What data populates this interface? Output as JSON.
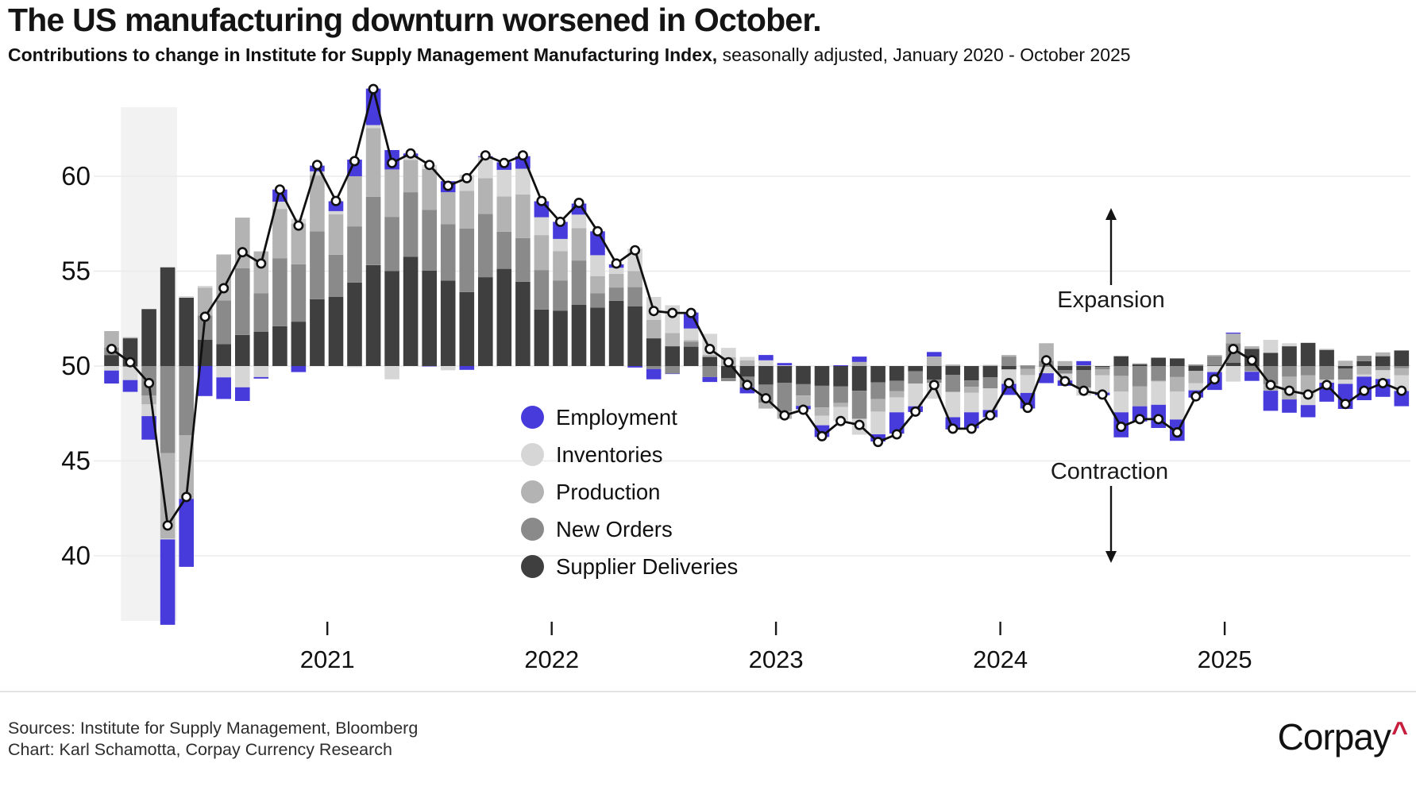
{
  "title": "The US manufacturing downturn worsened in October.",
  "subtitle_bold": "Contributions to change in Institute for Supply Management Manufacturing Index,",
  "subtitle_regular": " seasonally adjusted, January 2020 - October 2025",
  "legend": {
    "items": [
      {
        "label": "Employment",
        "color": "#473BDB"
      },
      {
        "label": "Inventories",
        "color": "#d6d6d6"
      },
      {
        "label": "Production",
        "color": "#b3b3b3"
      },
      {
        "label": "New Orders",
        "color": "#8a8a8a"
      },
      {
        "label": "Supplier Deliveries",
        "color": "#3f3f3f"
      }
    ]
  },
  "annotations": {
    "expansion": "Expansion",
    "contraction": "Contraction"
  },
  "footer": {
    "sources_line": "Sources: Institute for Supply Management, Bloomberg",
    "chart_line": "Chart: Karl Schamotta, Corpay Currency Research"
  },
  "logo": {
    "text": "Corpay",
    "caret": "^",
    "caret_color": "#C81E3E"
  },
  "chart_data": {
    "type": "bar",
    "subtype": "stacked-contribution-bars-with-line",
    "baseline": 50,
    "ylim": [
      36,
      66
    ],
    "grid": true,
    "y_ticks": [
      40,
      45,
      50,
      55,
      60
    ],
    "x_ticks": [
      {
        "label": "2021",
        "month": "Jan 2021"
      },
      {
        "label": "2022",
        "month": "Jan 2022"
      },
      {
        "label": "2023",
        "month": "Jan 2023"
      },
      {
        "label": "2024",
        "month": "Jan 2024"
      },
      {
        "label": "2025",
        "month": "Jan 2025"
      }
    ],
    "recession_band": {
      "from": "Feb 2020",
      "to": "Apr 2020"
    },
    "months": [
      "Jan 2020",
      "Feb 2020",
      "Mar 2020",
      "Apr 2020",
      "May 2020",
      "Jun 2020",
      "Jul 2020",
      "Aug 2020",
      "Sep 2020",
      "Oct 2020",
      "Nov 2020",
      "Dec 2020",
      "Jan 2021",
      "Feb 2021",
      "Mar 2021",
      "Apr 2021",
      "May 2021",
      "Jun 2021",
      "Jul 2021",
      "Aug 2021",
      "Sep 2021",
      "Oct 2021",
      "Nov 2021",
      "Dec 2021",
      "Jan 2022",
      "Feb 2022",
      "Mar 2022",
      "Apr 2022",
      "May 2022",
      "Jun 2022",
      "Jul 2022",
      "Aug 2022",
      "Sep 2022",
      "Oct 2022",
      "Nov 2022",
      "Dec 2022",
      "Jan 2023",
      "Feb 2023",
      "Mar 2023",
      "Apr 2023",
      "May 2023",
      "Jun 2023",
      "Jul 2023",
      "Aug 2023",
      "Sep 2023",
      "Oct 2023",
      "Nov 2023",
      "Dec 2023",
      "Jan 2024",
      "Feb 2024",
      "Mar 2024",
      "Apr 2024",
      "May 2024",
      "Jun 2024",
      "Jul 2024",
      "Aug 2024",
      "Sep 2024",
      "Oct 2024",
      "Nov 2024",
      "Dec 2024",
      "Jan 2025",
      "Feb 2025",
      "Mar 2025",
      "Apr 2025",
      "May 2025",
      "Jun 2025",
      "Jul 2025",
      "Aug 2025",
      "Sep 2025",
      "Oct 2025"
    ],
    "series": [
      {
        "name": "Supplier Deliveries",
        "color": "#3f3f3f",
        "values": [
          0.58,
          1.46,
          3.0,
          5.2,
          3.6,
          1.38,
          1.16,
          1.64,
          1.8,
          2.1,
          2.34,
          3.52,
          3.64,
          4.4,
          5.32,
          5.0,
          5.76,
          5.02,
          4.5,
          3.9,
          4.68,
          5.12,
          4.44,
          2.98,
          2.92,
          3.22,
          3.08,
          3.44,
          3.14,
          1.46,
          1.04,
          1.02,
          0.48,
          -0.64,
          -0.56,
          -0.98,
          -0.88,
          -0.96,
          -1.04,
          -1.08,
          -1.3,
          -0.86,
          -0.78,
          -0.28,
          -0.72,
          -0.46,
          -0.76,
          -0.6,
          -0.18,
          0.02,
          -0.02,
          -0.22,
          -0.22,
          -0.04,
          0.52,
          0.1,
          0.44,
          0.4,
          -0.26,
          0.02,
          0.18,
          0.9,
          0.7,
          1.04,
          1.22,
          0.84,
          -0.14,
          0.26,
          0.52,
          0.82
        ]
      },
      {
        "name": "New Orders",
        "color": "#8a8a8a",
        "values": [
          0.4,
          -0.04,
          -1.56,
          -4.58,
          -3.64,
          1.28,
          2.3,
          3.52,
          2.04,
          3.58,
          3.02,
          3.58,
          2.22,
          2.96,
          3.6,
          2.86,
          3.4,
          3.2,
          2.98,
          3.34,
          3.34,
          1.96,
          2.3,
          2.08,
          1.58,
          2.34,
          0.76,
          0.7,
          1.02,
          -0.16,
          -0.4,
          0.26,
          -0.58,
          -0.16,
          -0.56,
          -0.96,
          -1.5,
          -0.6,
          -1.14,
          -0.86,
          -1.48,
          -0.88,
          -0.54,
          -0.64,
          -0.16,
          -0.9,
          -0.34,
          -0.58,
          0.5,
          -0.16,
          0.28,
          -0.18,
          -0.92,
          -0.14,
          -0.52,
          -1.08,
          -0.78,
          -0.58,
          0.08,
          0.5,
          1.02,
          -0.28,
          -0.96,
          -0.56,
          -0.48,
          -0.72,
          -0.58,
          0.28,
          -0.22,
          -0.12
        ]
      },
      {
        "name": "Production",
        "color": "#b3b3b3",
        "values": [
          0.86,
          0.06,
          -0.46,
          -4.5,
          -3.36,
          1.46,
          2.42,
          2.66,
          2.2,
          2.6,
          2.16,
          2.96,
          2.14,
          2.64,
          3.62,
          2.5,
          1.7,
          2.16,
          1.68,
          2.0,
          1.88,
          1.86,
          2.3,
          1.84,
          1.56,
          1.7,
          0.9,
          0.72,
          0.84,
          0.98,
          0.7,
          0.08,
          0.12,
          0.46,
          0.3,
          -0.3,
          -0.4,
          -0.54,
          -0.44,
          -0.22,
          0.22,
          -0.66,
          -0.34,
          0.0,
          0.5,
          0.08,
          -0.3,
          0.06,
          0.08,
          -0.32,
          0.92,
          0.26,
          0.04,
          -0.3,
          -0.82,
          -1.04,
          -0.04,
          -0.76,
          -0.64,
          0.06,
          0.5,
          0.14,
          -0.34,
          -1.2,
          -0.92,
          0.06,
          0.28,
          -0.44,
          0.2,
          -0.36
        ]
      },
      {
        "name": "Inventories",
        "color": "#d6d6d6",
        "values": [
          -0.24,
          -0.7,
          -0.62,
          -0.06,
          0.08,
          0.1,
          -0.6,
          -1.12,
          -0.58,
          0.38,
          0.24,
          0.2,
          0.16,
          -0.06,
          0.16,
          -0.7,
          0.16,
          0.22,
          -0.22,
          0.84,
          1.12,
          1.4,
          1.36,
          0.94,
          0.64,
          0.72,
          1.1,
          0.32,
          1.18,
          1.2,
          1.46,
          0.62,
          1.1,
          0.5,
          0.18,
          0.3,
          0.04,
          0.02,
          -0.5,
          -0.74,
          -0.84,
          -1.2,
          -0.78,
          -1.2,
          -0.84,
          -1.34,
          -1.04,
          -1.14,
          -0.76,
          -0.94,
          -0.36,
          -0.36,
          -0.42,
          -0.92,
          -1.1,
          0.06,
          -1.22,
          -1.48,
          -0.38,
          -0.32,
          -0.82,
          -0.02,
          0.68,
          0.16,
          -0.66,
          -0.16,
          -0.22,
          -0.12,
          -0.46,
          -0.84
        ]
      },
      {
        "name": "Employment",
        "color": "#473BDB",
        "values": [
          -0.68,
          -0.62,
          -1.24,
          -4.5,
          -3.58,
          -1.58,
          -1.14,
          -0.72,
          -0.08,
          0.64,
          -0.32,
          0.3,
          0.52,
          0.88,
          1.92,
          1.02,
          0.18,
          -0.02,
          0.58,
          -0.2,
          0.04,
          0.4,
          0.66,
          0.84,
          0.9,
          0.58,
          1.26,
          0.18,
          -0.08,
          -0.54,
          -0.02,
          0.84,
          -0.26,
          0.0,
          -0.32,
          0.28,
          0.12,
          -0.18,
          -0.62,
          0.04,
          0.28,
          -0.38,
          -1.12,
          -0.3,
          0.24,
          -0.64,
          -0.84,
          -0.38,
          -0.58,
          -0.82,
          -0.52,
          -0.28,
          0.22,
          -0.14,
          -1.32,
          -0.8,
          -1.22,
          -1.12,
          -0.38,
          -0.94,
          0.06,
          -0.48,
          -1.06,
          -0.7,
          -0.64,
          -1.0,
          -1.32,
          -1.24,
          -0.94,
          -0.8
        ]
      }
    ],
    "line": {
      "name": "ISM Manufacturing PMI",
      "color": "#101010",
      "marker": "open-circle",
      "values": [
        50.9,
        50.2,
        49.1,
        41.6,
        43.1,
        52.6,
        54.1,
        56.0,
        55.4,
        59.3,
        57.4,
        60.6,
        58.7,
        60.8,
        64.6,
        60.7,
        61.2,
        60.6,
        59.5,
        59.9,
        61.1,
        60.7,
        61.1,
        58.7,
        57.6,
        58.6,
        57.1,
        55.4,
        56.1,
        52.9,
        52.8,
        52.8,
        50.9,
        50.2,
        49.0,
        48.3,
        47.4,
        47.7,
        46.3,
        47.1,
        46.9,
        46.0,
        46.4,
        47.6,
        49.0,
        46.7,
        46.7,
        47.4,
        49.1,
        47.8,
        50.3,
        49.2,
        48.7,
        48.5,
        46.8,
        47.2,
        47.2,
        46.5,
        48.4,
        49.3,
        50.9,
        50.3,
        49.0,
        48.7,
        48.5,
        49.0,
        48.0,
        48.7,
        49.1,
        48.7
      ]
    }
  }
}
